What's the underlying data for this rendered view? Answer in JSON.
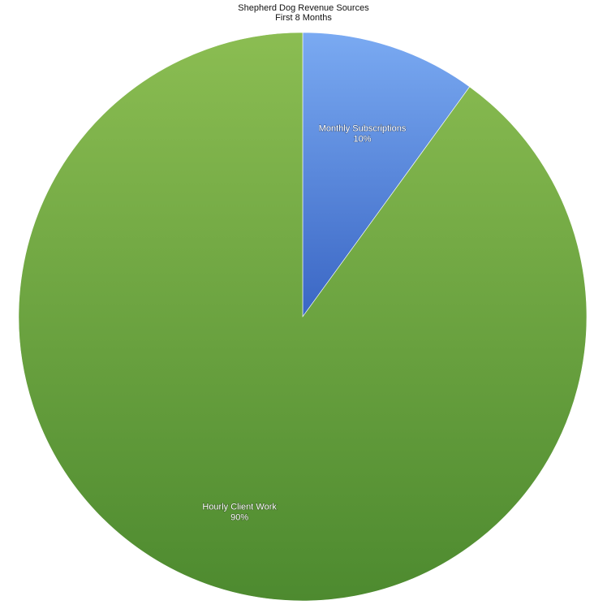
{
  "chart_data": {
    "type": "pie",
    "title": "Shepherd Dog Revenue Sources",
    "subtitle": "First 8 Months",
    "slices": [
      {
        "label": "Monthly Subscriptions",
        "value": 10,
        "value_label": "10%",
        "color_top": "#7aaaf2",
        "color_bottom": "#3a66c4"
      },
      {
        "label": "Hourly Client Work",
        "value": 90,
        "value_label": "90%",
        "color_top": "#8bbd52",
        "color_bottom": "#4d8a2f"
      }
    ]
  }
}
